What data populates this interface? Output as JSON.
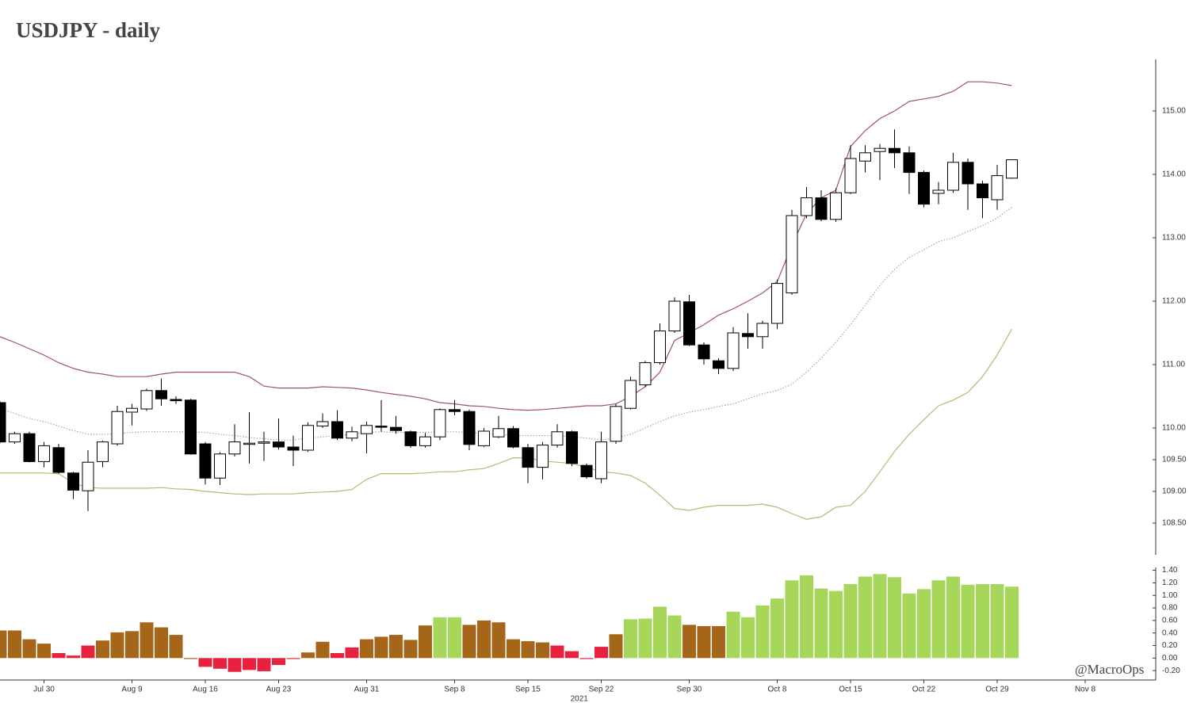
{
  "chart_data": [
    {
      "type": "candlestick",
      "title": "USDJPY - daily",
      "open": [
        110.4,
        109.78,
        109.91,
        109.47,
        109.69,
        109.29,
        109.01,
        109.47,
        109.75,
        110.25,
        110.3,
        110.59,
        110.45,
        110.44,
        109.75,
        109.21,
        109.59,
        109.75,
        109.76,
        109.78,
        109.7,
        109.65,
        110.03,
        110.1,
        109.84,
        109.91,
        110.03,
        110.01,
        109.94,
        109.72,
        109.86,
        110.29,
        110.26,
        109.72,
        109.86,
        109.99,
        109.69,
        109.38,
        109.73,
        109.94,
        109.41,
        109.2,
        109.79,
        110.31,
        110.68,
        111.03,
        111.53,
        111.99,
        111.31,
        111.06,
        110.94,
        111.49,
        111.44,
        111.65,
        112.13,
        113.35,
        113.63,
        113.29,
        113.71,
        114.21,
        114.36,
        114.41,
        114.34,
        114.03,
        113.7,
        113.75,
        114.19,
        113.85,
        113.6,
        113.94,
        null,
        null,
        null,
        null,
        null
      ],
      "high": [
        110.42,
        109.94,
        109.94,
        109.78,
        109.75,
        109.31,
        109.65,
        109.8,
        110.35,
        110.38,
        110.62,
        110.78,
        110.5,
        110.46,
        109.78,
        109.62,
        110.06,
        110.25,
        109.94,
        110.15,
        109.88,
        110.09,
        110.23,
        110.28,
        110.02,
        110.1,
        110.44,
        110.19,
        109.96,
        109.92,
        110.31,
        110.44,
        110.29,
        110.0,
        110.19,
        110.03,
        109.75,
        109.78,
        110.06,
        109.96,
        109.44,
        109.94,
        110.38,
        110.81,
        111.06,
        111.65,
        112.06,
        112.1,
        111.35,
        111.1,
        111.59,
        111.81,
        111.69,
        112.34,
        113.44,
        113.8,
        113.75,
        113.78,
        114.46,
        114.46,
        114.48,
        114.71,
        114.44,
        114.06,
        113.88,
        114.34,
        114.25,
        113.9,
        114.15,
        114.23,
        null,
        null,
        null,
        null,
        null
      ],
      "low": [
        109.76,
        109.75,
        109.46,
        109.38,
        109.28,
        108.88,
        108.69,
        109.38,
        109.72,
        110.04,
        110.27,
        110.35,
        110.38,
        109.58,
        109.11,
        109.1,
        109.55,
        109.44,
        109.48,
        109.66,
        109.4,
        109.62,
        110.0,
        109.81,
        109.79,
        109.6,
        109.94,
        109.91,
        109.69,
        109.69,
        109.81,
        110.2,
        109.65,
        109.7,
        109.84,
        109.68,
        109.13,
        109.19,
        109.69,
        109.4,
        109.2,
        109.13,
        109.75,
        110.29,
        110.65,
        111.0,
        111.5,
        111.29,
        111.0,
        110.85,
        110.9,
        111.25,
        111.25,
        111.56,
        112.1,
        113.31,
        113.26,
        113.25,
        113.69,
        114.03,
        113.91,
        114.1,
        113.69,
        113.48,
        113.53,
        113.71,
        113.44,
        113.31,
        113.44,
        113.93,
        null,
        null,
        null,
        null,
        null
      ],
      "close": [
        109.78,
        109.91,
        109.47,
        109.72,
        109.3,
        109.02,
        109.46,
        109.78,
        110.26,
        110.31,
        110.59,
        110.46,
        110.43,
        109.59,
        109.21,
        109.59,
        109.78,
        109.76,
        109.78,
        109.7,
        109.65,
        110.04,
        110.1,
        109.84,
        109.94,
        110.04,
        110.02,
        109.96,
        109.72,
        109.86,
        110.29,
        110.26,
        109.74,
        109.95,
        109.99,
        109.7,
        109.38,
        109.73,
        109.94,
        109.44,
        109.23,
        109.78,
        110.34,
        110.75,
        111.03,
        111.53,
        112.0,
        111.31,
        111.09,
        110.94,
        111.5,
        111.44,
        111.65,
        112.28,
        113.35,
        113.63,
        113.29,
        113.71,
        114.25,
        114.34,
        114.41,
        114.34,
        114.03,
        113.53,
        113.75,
        114.19,
        113.85,
        113.63,
        113.98,
        114.23,
        null,
        null,
        null,
        null,
        null
      ],
      "up_color": "#ffffff",
      "down_color": "#000000",
      "overlays": [
        {
          "color": "#a0525e",
          "style": "solid",
          "values": [
            111.44,
            111.35,
            111.25,
            111.15,
            111.03,
            110.94,
            110.88,
            110.85,
            110.81,
            110.81,
            110.81,
            110.85,
            110.88,
            110.88,
            110.88,
            110.88,
            110.88,
            110.81,
            110.66,
            110.63,
            110.63,
            110.63,
            110.65,
            110.64,
            110.63,
            110.6,
            110.56,
            110.53,
            110.5,
            110.46,
            110.4,
            110.38,
            110.35,
            110.34,
            110.31,
            110.29,
            110.28,
            110.29,
            110.31,
            110.33,
            110.35,
            110.35,
            110.38,
            110.5,
            110.65,
            110.88,
            111.38,
            111.5,
            111.63,
            111.78,
            111.88,
            112.0,
            112.13,
            112.31,
            112.88,
            113.38,
            113.63,
            113.75,
            114.44,
            114.69,
            114.88,
            115.0,
            115.15,
            115.19,
            115.23,
            115.31,
            115.46,
            115.46,
            115.44,
            115.4,
            null,
            null,
            null,
            null,
            null
          ]
        },
        {
          "color": "#c49aa0",
          "style": "dotted",
          "values": [
            110.31,
            110.23,
            110.15,
            110.1,
            110.03,
            109.96,
            109.9,
            109.9,
            109.91,
            109.93,
            109.94,
            109.94,
            109.94,
            109.94,
            109.93,
            109.9,
            109.88,
            109.85,
            109.83,
            109.81,
            109.81,
            109.84,
            109.86,
            109.88,
            109.9,
            109.93,
            109.94,
            109.93,
            109.93,
            109.93,
            109.94,
            109.94,
            109.93,
            109.91,
            109.9,
            109.88,
            109.88,
            109.88,
            109.88,
            109.86,
            109.84,
            109.81,
            109.84,
            109.9,
            110.0,
            110.1,
            110.19,
            110.25,
            110.29,
            110.34,
            110.38,
            110.46,
            110.54,
            110.59,
            110.69,
            110.88,
            111.1,
            111.35,
            111.63,
            111.94,
            112.25,
            112.5,
            112.69,
            112.81,
            112.94,
            113.0,
            113.1,
            113.19,
            113.31,
            113.48,
            null,
            null,
            null,
            null,
            null
          ]
        },
        {
          "color": "#a8c070",
          "style": "solid",
          "values": [
            109.29,
            109.29,
            109.29,
            109.29,
            109.28,
            109.13,
            109.06,
            109.05,
            109.05,
            109.05,
            109.05,
            109.06,
            109.04,
            109.03,
            109.0,
            108.98,
            108.96,
            108.95,
            108.96,
            108.96,
            108.96,
            108.98,
            108.99,
            109.0,
            109.03,
            109.19,
            109.28,
            109.28,
            109.28,
            109.29,
            109.31,
            109.31,
            109.34,
            109.36,
            109.44,
            109.53,
            109.53,
            109.48,
            109.46,
            109.44,
            109.38,
            109.31,
            109.29,
            109.25,
            109.13,
            108.94,
            108.73,
            108.7,
            108.75,
            108.78,
            108.78,
            108.78,
            108.8,
            108.75,
            108.65,
            108.56,
            108.6,
            108.75,
            108.78,
            109.0,
            109.31,
            109.63,
            109.9,
            110.13,
            110.35,
            110.44,
            110.56,
            110.81,
            111.15,
            111.56,
            null,
            null,
            null,
            null,
            null
          ]
        }
      ],
      "ylim": [
        108.0,
        115.8
      ],
      "yticks": [
        {
          "value": 108.5,
          "label": "108.50"
        },
        {
          "value": 109,
          "label": "109.00"
        },
        {
          "value": 109.5,
          "label": "109.50"
        },
        {
          "value": 110,
          "label": "110.00"
        },
        {
          "value": 111,
          "label": "111.00"
        },
        {
          "value": 112,
          "label": "112.00"
        },
        {
          "value": 113,
          "label": "113.00"
        },
        {
          "value": 114,
          "label": "114.00"
        },
        {
          "value": 115,
          "label": "115.00"
        }
      ]
    },
    {
      "type": "bar",
      "categories": [
        null,
        null,
        null,
        "Jul 30",
        null,
        null,
        null,
        null,
        null,
        "Aug 9",
        null,
        null,
        null,
        null,
        "Aug 16",
        null,
        null,
        null,
        null,
        "Aug 23",
        null,
        null,
        null,
        null,
        null,
        "Aug 31",
        null,
        null,
        null,
        null,
        null,
        "Sep 8",
        null,
        null,
        null,
        null,
        "Sep 15",
        null,
        null,
        null,
        null,
        "Sep 22",
        null,
        null,
        null,
        null,
        null,
        "Sep 30",
        null,
        null,
        null,
        null,
        null,
        "Oct 8",
        null,
        null,
        null,
        null,
        "Oct 15",
        null,
        null,
        null,
        null,
        "Oct 22",
        null,
        null,
        null,
        null,
        "Oct 29",
        null,
        null,
        null,
        null,
        null,
        "Nov 8"
      ],
      "values": [
        0.44,
        0.44,
        0.3,
        0.23,
        0.08,
        0.04,
        0.2,
        0.28,
        0.41,
        0.43,
        0.57,
        0.49,
        0.37,
        0.0,
        -0.14,
        -0.17,
        -0.22,
        -0.19,
        -0.21,
        -0.11,
        -0.01,
        0.09,
        0.26,
        0.08,
        0.17,
        0.3,
        0.34,
        0.37,
        0.29,
        0.52,
        0.65,
        0.65,
        0.53,
        0.6,
        0.57,
        0.3,
        0.27,
        0.25,
        0.2,
        0.11,
        0.0,
        0.18,
        0.38,
        0.62,
        0.63,
        0.82,
        0.68,
        0.53,
        0.51,
        0.51,
        0.74,
        0.65,
        0.84,
        0.95,
        1.24,
        1.32,
        1.11,
        1.07,
        1.18,
        1.3,
        1.34,
        1.29,
        1.03,
        1.1,
        1.24,
        1.3,
        1.17,
        1.18,
        1.18,
        1.14,
        null,
        null,
        null,
        null,
        null
      ],
      "colors": [
        "#a5661a",
        "#a5661a",
        "#a5661a",
        "#a5661a",
        "#e8213f",
        "#e8213f",
        "#e8213f",
        "#a5661a",
        "#a5661a",
        "#a5661a",
        "#a5661a",
        "#a5661a",
        "#a5661a",
        "#a5661a",
        "#e8213f",
        "#e8213f",
        "#e8213f",
        "#e8213f",
        "#e8213f",
        "#e8213f",
        "#e8213f",
        "#a5661a",
        "#a5661a",
        "#e8213f",
        "#e8213f",
        "#a5661a",
        "#a5661a",
        "#a5661a",
        "#a5661a",
        "#a5661a",
        "#a6d75b",
        "#a6d75b",
        "#a5661a",
        "#a5661a",
        "#a5661a",
        "#a5661a",
        "#a5661a",
        "#a5661a",
        "#e8213f",
        "#e8213f",
        "#e8213f",
        "#e8213f",
        "#a5661a",
        "#a6d75b",
        "#a6d75b",
        "#a6d75b",
        "#a6d75b",
        "#a5661a",
        "#a5661a",
        "#a5661a",
        "#a6d75b",
        "#a6d75b",
        "#a6d75b",
        "#a6d75b",
        "#a6d75b",
        "#a6d75b",
        "#a6d75b",
        "#a6d75b",
        "#a6d75b",
        "#a6d75b",
        "#a6d75b",
        "#a6d75b",
        "#a6d75b",
        "#a6d75b",
        "#a6d75b",
        "#a6d75b",
        "#a6d75b",
        "#a6d75b",
        "#a6d75b",
        "#a6d75b",
        null,
        null,
        null,
        null,
        null
      ],
      "xlabel": "2021",
      "ylim": [
        -0.35,
        1.42
      ],
      "yticks": [
        {
          "value": -0.2,
          "label": "-0.20"
        },
        {
          "value": 0,
          "label": "0.00"
        },
        {
          "value": 0.2,
          "label": "0.20"
        },
        {
          "value": 0.4,
          "label": "0.40"
        },
        {
          "value": 0.6,
          "label": "0.60"
        },
        {
          "value": 0.8,
          "label": "0.80"
        },
        {
          "value": 1.0,
          "label": "1.00"
        },
        {
          "value": 1.2,
          "label": "1.20"
        },
        {
          "value": 1.4,
          "label": "1.40"
        }
      ]
    }
  ],
  "credit": "@MacroOps"
}
